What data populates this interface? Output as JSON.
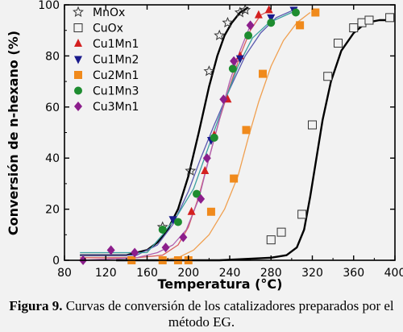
{
  "chart_data": {
    "type": "scatter",
    "xlabel": "Temperatura (°C)",
    "ylabel": "Conversión de n-hexano (%)",
    "xlim": [
      80,
      400
    ],
    "ylim": [
      0,
      100
    ],
    "xticks": [
      80,
      120,
      160,
      200,
      240,
      280,
      320,
      360,
      400
    ],
    "yticks": [
      0,
      20,
      40,
      60,
      80,
      100
    ],
    "legend_position": "top-left",
    "series": [
      {
        "name": "MnOx",
        "marker": "star-open",
        "color": "#333333",
        "line_color": "#000000",
        "points": [
          [
            175,
            13
          ],
          [
            202,
            35
          ],
          [
            220,
            74
          ],
          [
            230,
            88
          ],
          [
            238,
            93
          ],
          [
            250,
            97
          ],
          [
            255,
            98
          ]
        ],
        "curve": [
          [
            95,
            2
          ],
          [
            140,
            2
          ],
          [
            160,
            4
          ],
          [
            170,
            7
          ],
          [
            180,
            12
          ],
          [
            190,
            20
          ],
          [
            200,
            33
          ],
          [
            210,
            50
          ],
          [
            220,
            68
          ],
          [
            228,
            80
          ],
          [
            235,
            88
          ],
          [
            242,
            93
          ],
          [
            250,
            97
          ],
          [
            258,
            99
          ]
        ]
      },
      {
        "name": "CuOx",
        "marker": "square-open",
        "color": "#333333",
        "line_color": "#000000",
        "points": [
          [
            280,
            8
          ],
          [
            290,
            11
          ],
          [
            310,
            18
          ],
          [
            320,
            53
          ],
          [
            335,
            72
          ],
          [
            345,
            85
          ],
          [
            360,
            91
          ],
          [
            368,
            93
          ],
          [
            375,
            94
          ],
          [
            395,
            95
          ]
        ],
        "curve": [
          [
            130,
            0
          ],
          [
            170,
            0
          ],
          [
            230,
            0
          ],
          [
            280,
            1
          ],
          [
            295,
            2
          ],
          [
            305,
            5
          ],
          [
            312,
            12
          ],
          [
            318,
            25
          ],
          [
            324,
            40
          ],
          [
            330,
            55
          ],
          [
            338,
            70
          ],
          [
            348,
            82
          ],
          [
            360,
            89
          ],
          [
            372,
            93
          ],
          [
            385,
            94
          ],
          [
            398,
            94
          ]
        ]
      },
      {
        "name": "Cu1Mn1",
        "marker": "triangle-up",
        "color": "#d42020",
        "line_color": "#d96060",
        "points": [
          [
            203,
            19
          ],
          [
            216,
            35
          ],
          [
            225,
            49
          ],
          [
            238,
            63
          ],
          [
            250,
            80
          ],
          [
            268,
            96
          ],
          [
            278,
            98
          ]
        ],
        "curve": [
          [
            95,
            1
          ],
          [
            150,
            1
          ],
          [
            175,
            2
          ],
          [
            190,
            6
          ],
          [
            200,
            13
          ],
          [
            210,
            25
          ],
          [
            220,
            40
          ],
          [
            230,
            55
          ],
          [
            240,
            68
          ],
          [
            250,
            80
          ],
          [
            260,
            90
          ],
          [
            270,
            96
          ],
          [
            280,
            98
          ]
        ]
      },
      {
        "name": "Cu1Mn2",
        "marker": "triangle-down",
        "color": "#1a1a8c",
        "line_color": "#5a5ab0",
        "points": [
          [
            185,
            16
          ],
          [
            222,
            47
          ],
          [
            250,
            79
          ],
          [
            280,
            95
          ],
          [
            302,
            98
          ]
        ],
        "curve": [
          [
            95,
            2
          ],
          [
            150,
            2
          ],
          [
            170,
            6
          ],
          [
            185,
            14
          ],
          [
            200,
            27
          ],
          [
            212,
            40
          ],
          [
            225,
            53
          ],
          [
            240,
            67
          ],
          [
            255,
            80
          ],
          [
            270,
            89
          ],
          [
            285,
            95
          ],
          [
            302,
            98
          ]
        ]
      },
      {
        "name": "Cu2Mn1",
        "marker": "square-filled",
        "color": "#f08a1c",
        "line_color": "#f0a050",
        "points": [
          [
            145,
            0
          ],
          [
            175,
            0
          ],
          [
            190,
            0
          ],
          [
            200,
            0
          ],
          [
            222,
            19
          ],
          [
            244,
            32
          ],
          [
            256,
            51
          ],
          [
            272,
            73
          ],
          [
            308,
            92
          ],
          [
            323,
            97
          ]
        ],
        "curve": [
          [
            170,
            0
          ],
          [
            190,
            1
          ],
          [
            205,
            4
          ],
          [
            220,
            10
          ],
          [
            235,
            20
          ],
          [
            248,
            33
          ],
          [
            258,
            48
          ],
          [
            268,
            62
          ],
          [
            280,
            76
          ],
          [
            292,
            86
          ],
          [
            305,
            93
          ],
          [
            318,
            97
          ]
        ]
      },
      {
        "name": "Cu1Mn3",
        "marker": "circle-filled",
        "color": "#1e8c30",
        "line_color": "#3aa0a0",
        "points": [
          [
            175,
            12
          ],
          [
            190,
            15
          ],
          [
            208,
            26
          ],
          [
            225,
            48
          ],
          [
            243,
            75
          ],
          [
            258,
            88
          ],
          [
            280,
            93
          ],
          [
            304,
            97
          ]
        ],
        "curve": [
          [
            95,
            3
          ],
          [
            160,
            3
          ],
          [
            175,
            10
          ],
          [
            190,
            18
          ],
          [
            205,
            28
          ],
          [
            220,
            45
          ],
          [
            235,
            62
          ],
          [
            248,
            76
          ],
          [
            262,
            87
          ],
          [
            278,
            93
          ],
          [
            300,
            97
          ]
        ]
      },
      {
        "name": "Cu3Mn1",
        "marker": "diamond-filled",
        "color": "#8c1e8c",
        "line_color": "#b060b0",
        "points": [
          [
            98,
            0
          ],
          [
            125,
            4
          ],
          [
            148,
            3
          ],
          [
            178,
            5
          ],
          [
            195,
            9
          ],
          [
            212,
            24
          ],
          [
            218,
            40
          ],
          [
            234,
            63
          ],
          [
            244,
            78
          ],
          [
            260,
            92
          ]
        ],
        "curve": [
          [
            95,
            0
          ],
          [
            150,
            1
          ],
          [
            170,
            3
          ],
          [
            185,
            6
          ],
          [
            198,
            12
          ],
          [
            210,
            24
          ],
          [
            220,
            40
          ],
          [
            230,
            55
          ],
          [
            240,
            70
          ],
          [
            250,
            82
          ],
          [
            260,
            92
          ]
        ]
      }
    ]
  },
  "caption": {
    "label": "Figura 9.",
    "text": "Curvas de conversión de los catalizadores preparados por el método EG."
  }
}
